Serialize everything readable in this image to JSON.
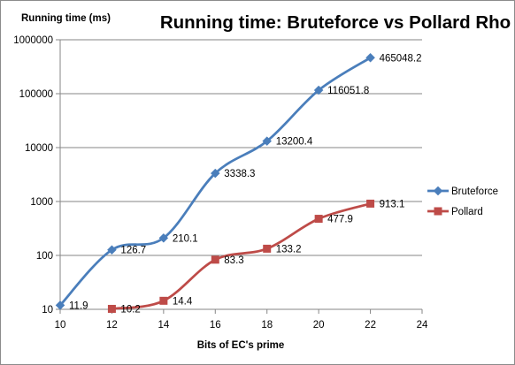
{
  "chart_data": {
    "type": "line",
    "title": "Running time: Bruteforce vs Pollard Rho",
    "xlabel": "Bits of EC's prime",
    "ylabel": "Running time (ms)",
    "y_scale": "log",
    "xlim": [
      10,
      24
    ],
    "ylim": [
      10,
      1000000
    ],
    "x_ticks": [
      "10",
      "12",
      "14",
      "16",
      "18",
      "20",
      "22",
      "24"
    ],
    "y_ticks": [
      "10",
      "100",
      "1000",
      "10000",
      "100000",
      "1000000"
    ],
    "grid": "horizontal major gridlines",
    "legend_position": "right",
    "series": [
      {
        "name": "Bruteforce",
        "color": "#4a7ebb",
        "marker": "diamond",
        "x": [
          10,
          12,
          14,
          16,
          18,
          20,
          22
        ],
        "values": [
          11.9,
          126.7,
          210.1,
          3338.3,
          13200.4,
          116051.8,
          465048.2
        ],
        "labels": [
          "11.9",
          "126.7",
          "210.1",
          "3338.3",
          "13200.4",
          "116051.8",
          "465048.2"
        ]
      },
      {
        "name": "Pollard",
        "color": "#be4b48",
        "marker": "square",
        "x": [
          12,
          14,
          16,
          18,
          20,
          22
        ],
        "values": [
          10.2,
          14.4,
          83.3,
          133.2,
          477.9,
          913.1
        ],
        "labels": [
          "10.2",
          "14.4",
          "83.3",
          "133.2",
          "477.9",
          "913.1"
        ]
      }
    ]
  }
}
